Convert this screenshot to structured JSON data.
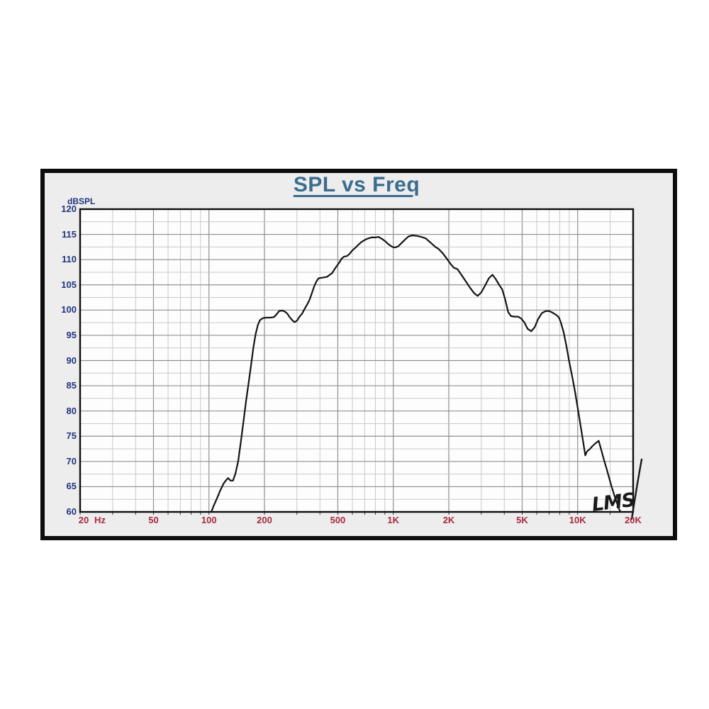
{
  "title": "SPL vs Freq",
  "y_axis": {
    "unit": "dBSPL",
    "min": 60,
    "max": 120,
    "major_step": 5,
    "minor_step": 2.5,
    "tick_labels": [
      "120",
      "115",
      "110",
      "105",
      "100",
      "95",
      "90",
      "85",
      "80",
      "75",
      "70",
      "65",
      "60"
    ],
    "tick_values": [
      120,
      115,
      110,
      105,
      100,
      95,
      90,
      85,
      80,
      75,
      70,
      65,
      60
    ]
  },
  "x_axis": {
    "unit": "Hz",
    "scale": "log",
    "min": 20,
    "max": 20000,
    "tick_labels": [
      {
        "f": 20,
        "label": "20"
      },
      {
        "f": 50,
        "label": "50"
      },
      {
        "f": 100,
        "label": "100"
      },
      {
        "f": 200,
        "label": "200"
      },
      {
        "f": 500,
        "label": "500"
      },
      {
        "f": 1000,
        "label": "1K"
      },
      {
        "f": 2000,
        "label": "2K"
      },
      {
        "f": 5000,
        "label": "5K"
      },
      {
        "f": 10000,
        "label": "10K"
      },
      {
        "f": 20000,
        "label": "20K"
      }
    ],
    "minor_lines": [
      30,
      40,
      60,
      70,
      80,
      90,
      300,
      400,
      600,
      700,
      800,
      900,
      3000,
      4000,
      6000,
      7000,
      8000,
      9000,
      15000
    ]
  },
  "annotation": {
    "signature": "LMS"
  },
  "colors": {
    "title": "#3a6d8f",
    "y_label": "#23357e",
    "x_label": "#a8293f",
    "grid_major": "#8f8f8f",
    "grid_minor": "#c9c9c9",
    "curve": "#141414",
    "plot_border": "#0d0d0d",
    "frame_bg": "#ededed",
    "plot_bg": "#fdfdfd",
    "signature": "#1a1a1a"
  },
  "chart_data": {
    "type": "line",
    "title": "SPL vs Freq",
    "xlabel": "Hz",
    "ylabel": "dBSPL",
    "x_scale": "log",
    "xlim": [
      20,
      20000
    ],
    "ylim": [
      60,
      120
    ],
    "grid": true,
    "legend": false,
    "series": [
      {
        "name": "SPL",
        "points": [
          [
            103,
            60
          ],
          [
            106,
            61.2
          ],
          [
            110,
            62.5
          ],
          [
            115,
            64.2
          ],
          [
            120,
            65.6
          ],
          [
            124,
            66.3
          ],
          [
            127,
            66.7
          ],
          [
            131,
            66.2
          ],
          [
            135,
            66.2
          ],
          [
            139,
            67.5
          ],
          [
            144,
            70
          ],
          [
            149,
            74
          ],
          [
            154,
            78
          ],
          [
            159,
            82
          ],
          [
            164,
            85.5
          ],
          [
            169,
            89
          ],
          [
            174,
            92.5
          ],
          [
            179,
            95.2
          ],
          [
            184,
            97
          ],
          [
            189,
            98
          ],
          [
            196,
            98.4
          ],
          [
            205,
            98.5
          ],
          [
            215,
            98.5
          ],
          [
            225,
            98.6
          ],
          [
            232,
            99.1
          ],
          [
            240,
            99.8
          ],
          [
            250,
            99.9
          ],
          [
            258,
            99.7
          ],
          [
            266,
            99.3
          ],
          [
            274,
            98.6
          ],
          [
            283,
            98
          ],
          [
            291,
            97.6
          ],
          [
            300,
            97.9
          ],
          [
            310,
            98.7
          ],
          [
            320,
            99.3
          ],
          [
            331,
            100.3
          ],
          [
            341,
            101.1
          ],
          [
            351,
            102
          ],
          [
            362,
            103.4
          ],
          [
            373,
            104.8
          ],
          [
            383,
            105.7
          ],
          [
            393,
            106.3
          ],
          [
            408,
            106.4
          ],
          [
            424,
            106.5
          ],
          [
            438,
            106.6
          ],
          [
            452,
            107
          ],
          [
            465,
            107.3
          ],
          [
            478,
            108
          ],
          [
            493,
            108.7
          ],
          [
            509,
            109.4
          ],
          [
            524,
            110.2
          ],
          [
            541,
            110.6
          ],
          [
            560,
            110.7
          ],
          [
            578,
            111.1
          ],
          [
            598,
            111.8
          ],
          [
            620,
            112.3
          ],
          [
            645,
            112.9
          ],
          [
            672,
            113.5
          ],
          [
            700,
            113.9
          ],
          [
            730,
            114.2
          ],
          [
            762,
            114.4
          ],
          [
            800,
            114.4
          ],
          [
            830,
            114.5
          ],
          [
            860,
            114.2
          ],
          [
            900,
            113.7
          ],
          [
            945,
            113
          ],
          [
            990,
            112.5
          ],
          [
            1020,
            112.4
          ],
          [
            1060,
            112.6
          ],
          [
            1110,
            113.3
          ],
          [
            1160,
            114
          ],
          [
            1210,
            114.6
          ],
          [
            1270,
            114.8
          ],
          [
            1340,
            114.7
          ],
          [
            1420,
            114.5
          ],
          [
            1500,
            114.2
          ],
          [
            1590,
            113.4
          ],
          [
            1680,
            112.6
          ],
          [
            1760,
            112.1
          ],
          [
            1850,
            111.3
          ],
          [
            1950,
            110.2
          ],
          [
            2050,
            109.1
          ],
          [
            2130,
            108.4
          ],
          [
            2230,
            108.1
          ],
          [
            2330,
            107.1
          ],
          [
            2450,
            105.9
          ],
          [
            2600,
            104.5
          ],
          [
            2750,
            103.3
          ],
          [
            2870,
            102.8
          ],
          [
            3000,
            103.5
          ],
          [
            3150,
            104.9
          ],
          [
            3300,
            106.3
          ],
          [
            3450,
            107
          ],
          [
            3600,
            106.1
          ],
          [
            3750,
            105
          ],
          [
            3900,
            104.1
          ],
          [
            4050,
            102
          ],
          [
            4200,
            99.6
          ],
          [
            4350,
            98.8
          ],
          [
            4550,
            98.7
          ],
          [
            4750,
            98.7
          ],
          [
            4950,
            98.3
          ],
          [
            5150,
            97.5
          ],
          [
            5350,
            96.3
          ],
          [
            5600,
            95.8
          ],
          [
            5850,
            96.6
          ],
          [
            6100,
            98.2
          ],
          [
            6400,
            99.4
          ],
          [
            6700,
            99.8
          ],
          [
            7000,
            99.8
          ],
          [
            7300,
            99.5
          ],
          [
            7600,
            99.1
          ],
          [
            7900,
            98.6
          ],
          [
            8100,
            97.6
          ],
          [
            8400,
            95.6
          ],
          [
            8700,
            92.8
          ],
          [
            9000,
            89.8
          ],
          [
            9350,
            86.8
          ],
          [
            9700,
            83.6
          ],
          [
            10050,
            80.2
          ],
          [
            10400,
            76.8
          ],
          [
            10700,
            74
          ],
          [
            11000,
            71.2
          ],
          [
            11250,
            72
          ],
          [
            11600,
            72.4
          ],
          [
            12000,
            73
          ],
          [
            12500,
            73.6
          ],
          [
            13000,
            74.1
          ],
          [
            13400,
            72.4
          ],
          [
            13900,
            70.3
          ],
          [
            14500,
            68
          ],
          [
            15200,
            65.3
          ],
          [
            16000,
            62.7
          ],
          [
            16800,
            60.5
          ],
          [
            17100,
            60
          ]
        ]
      }
    ]
  }
}
